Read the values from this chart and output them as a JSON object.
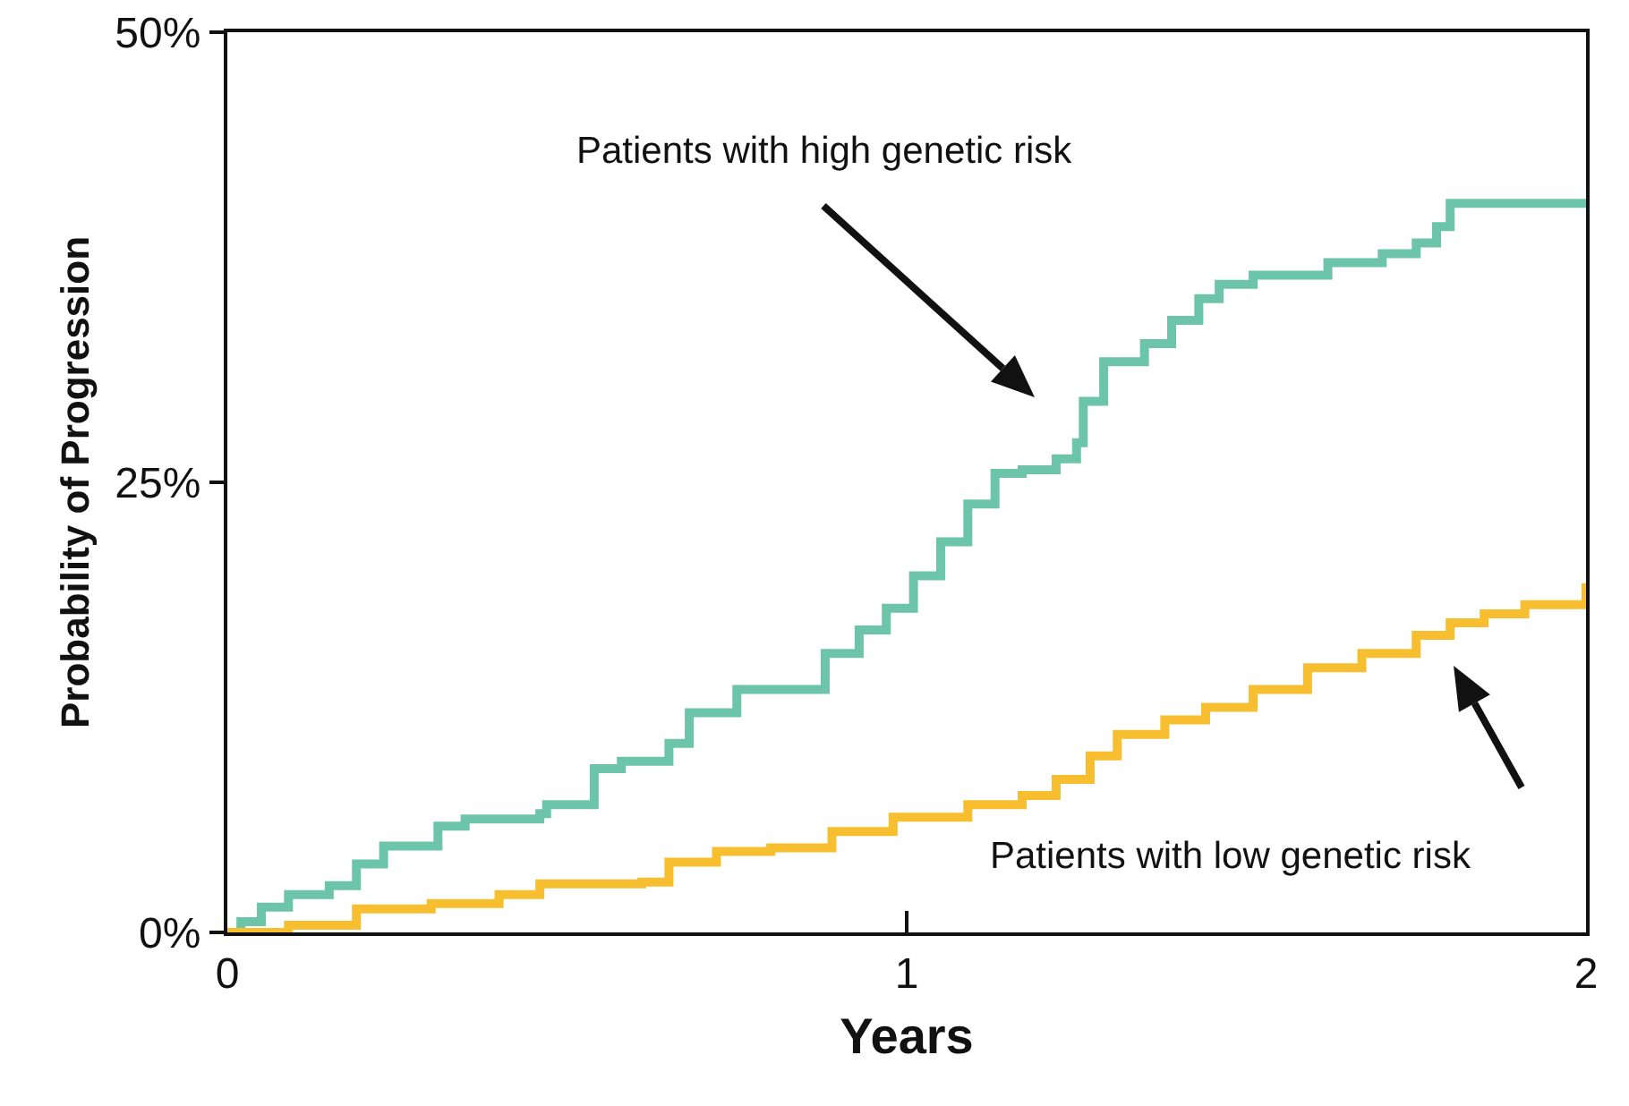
{
  "chart_data": {
    "type": "step",
    "xlabel": "Years",
    "ylabel": "Probability of Progression",
    "xlim": [
      0,
      2
    ],
    "xticks": [
      0,
      1,
      2
    ],
    "ylim": [
      0,
      50
    ],
    "yticks": [
      {
        "value": 0,
        "label": "0%"
      },
      {
        "value": 25,
        "label": "25%"
      },
      {
        "value": 50,
        "label": "50%"
      }
    ],
    "grid": false,
    "marker": "none",
    "line_style": "solid",
    "series": [
      {
        "color": "#6cc4a9",
        "x": [
          0,
          0.02,
          0.05,
          0.09,
          0.15,
          0.19,
          0.23,
          0.31,
          0.35,
          0.46,
          0.47,
          0.54,
          0.58,
          0.65,
          0.68,
          0.75,
          0.83,
          0.88,
          0.93,
          0.97,
          1.01,
          1.05,
          1.09,
          1.13,
          1.17,
          1.22,
          1.25,
          1.26,
          1.29,
          1.35,
          1.39,
          1.43,
          1.46,
          1.51,
          1.62,
          1.7,
          1.75,
          1.78,
          1.8,
          2.0
        ],
        "values": [
          0,
          0.6,
          1.4,
          2.1,
          2.6,
          3.8,
          4.8,
          5.9,
          6.3,
          6.6,
          7.1,
          9.1,
          9.5,
          10.5,
          12.2,
          13.5,
          13.5,
          15.5,
          16.8,
          18.0,
          19.8,
          21.7,
          23.8,
          25.5,
          25.7,
          26.3,
          27.2,
          29.5,
          31.7,
          32.7,
          34.0,
          35.2,
          36.0,
          36.5,
          37.2,
          37.7,
          38.3,
          39.2,
          40.5,
          40.5
        ]
      },
      {
        "color": "#f7be2f",
        "x": [
          0,
          0.09,
          0.19,
          0.3,
          0.4,
          0.46,
          0.61,
          0.65,
          0.72,
          0.8,
          0.89,
          0.98,
          1.09,
          1.17,
          1.22,
          1.27,
          1.31,
          1.38,
          1.44,
          1.51,
          1.59,
          1.67,
          1.75,
          1.8,
          1.85,
          1.91,
          2.0
        ],
        "values": [
          0,
          0.4,
          1.3,
          1.6,
          2.1,
          2.7,
          2.8,
          3.9,
          4.5,
          4.7,
          5.6,
          6.4,
          7.1,
          7.6,
          8.5,
          9.8,
          11.0,
          11.8,
          12.5,
          13.5,
          14.7,
          15.5,
          16.5,
          17.2,
          17.7,
          18.2,
          19.4
        ]
      }
    ],
    "annotations": [
      "Patients with high genetic risk",
      "Patients with low genetic risk"
    ]
  }
}
